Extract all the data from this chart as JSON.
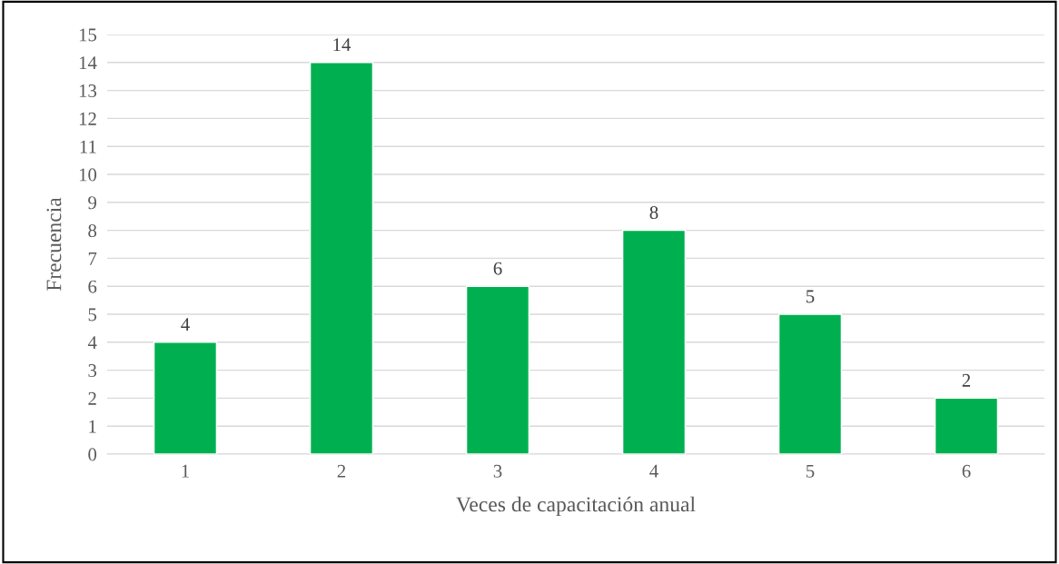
{
  "chart_data": {
    "type": "bar",
    "xlabel": "Veces de capacitación anual",
    "ylabel": "Frecuencia",
    "categories": [
      "1",
      "2",
      "3",
      "4",
      "5",
      "6"
    ],
    "values": [
      4,
      14,
      6,
      8,
      5,
      2
    ],
    "color": "#00b050",
    "ylim": [
      0,
      15
    ],
    "yticks": [
      0,
      1,
      2,
      3,
      4,
      5,
      6,
      7,
      8,
      9,
      10,
      11,
      12,
      13,
      14,
      15
    ],
    "grid": "y",
    "data_labels": true
  }
}
